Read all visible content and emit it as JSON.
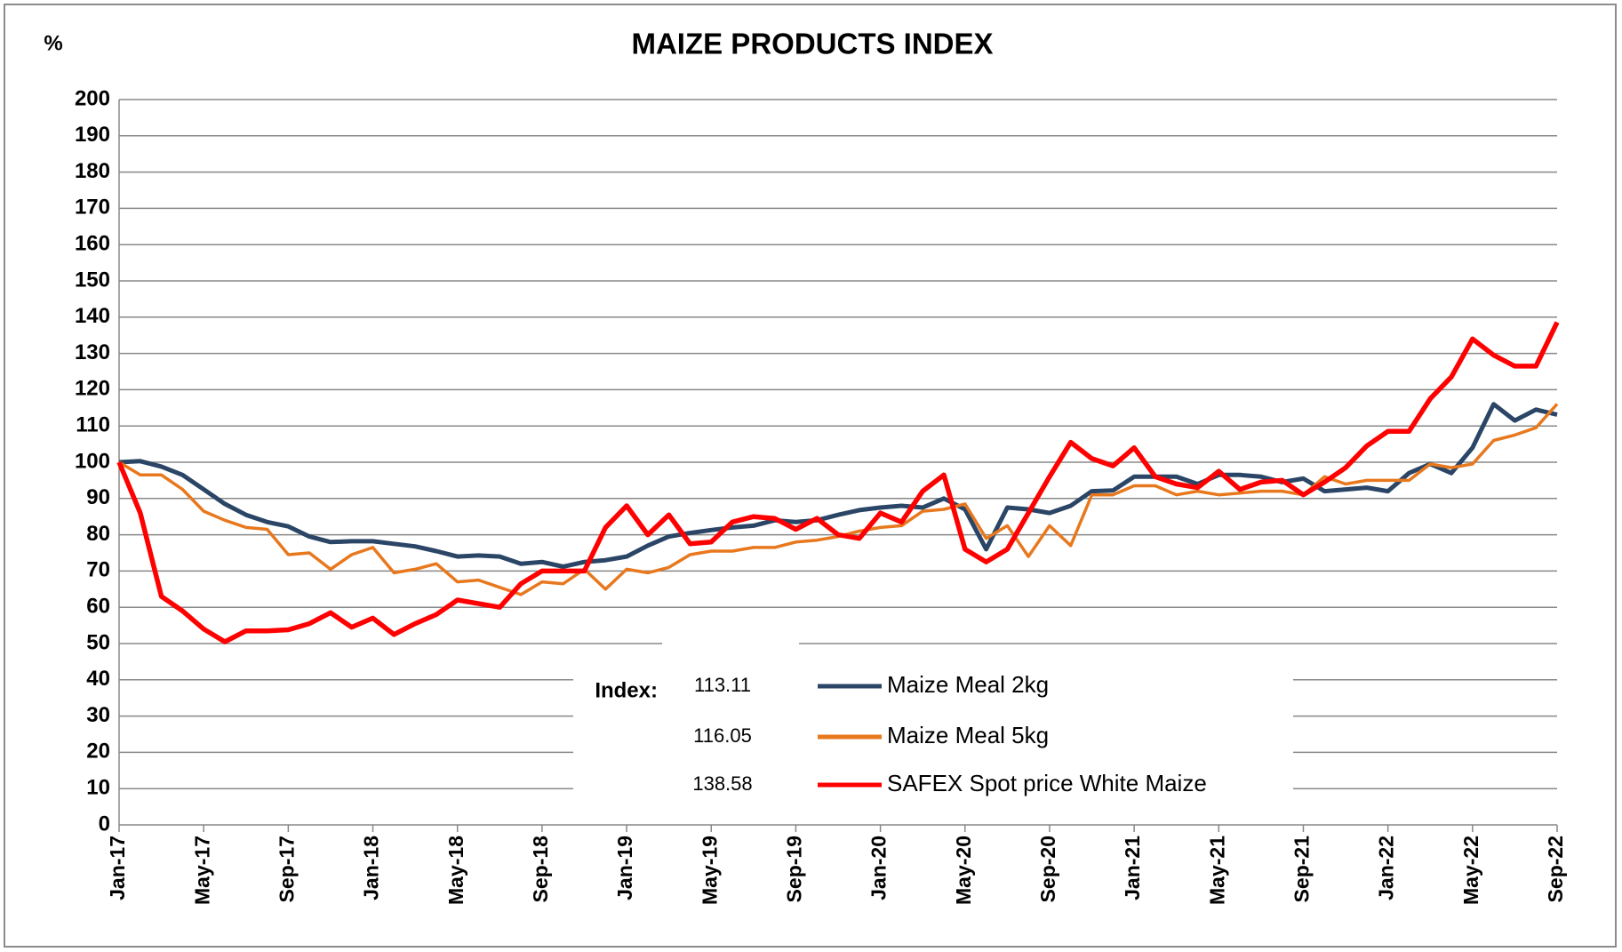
{
  "chart_data": {
    "type": "line",
    "title": "MAIZE PRODUCTS INDEX",
    "ylabel": "%",
    "index_label": "Index:",
    "categories": [
      "Jan-17",
      null,
      null,
      null,
      "May-17",
      null,
      null,
      null,
      "Sep-17",
      null,
      null,
      null,
      "Jan-18",
      null,
      null,
      null,
      "May-18",
      null,
      null,
      null,
      "Sep-18",
      null,
      null,
      null,
      "Jan-19",
      null,
      null,
      null,
      "May-19",
      null,
      null,
      null,
      "Sep-19",
      null,
      null,
      null,
      "Jan-20",
      null,
      null,
      null,
      "May-20",
      null,
      null,
      null,
      "Sep-20",
      null,
      null,
      null,
      "Jan-21",
      null,
      null,
      null,
      "May-21",
      null,
      null,
      null,
      "Sep-21",
      null,
      null,
      null,
      "Jan-22",
      null,
      null,
      null,
      "May-22",
      null,
      null,
      null,
      "Sep-22"
    ],
    "series": [
      {
        "name": "Maize Meal 2kg",
        "color": "#2b4566",
        "values": [
          100,
          100.3,
          98.8,
          96.5,
          92.5,
          88.5,
          85.5,
          83.5,
          82.3,
          79.5,
          78,
          78.2,
          78.2,
          77.5,
          76.8,
          75.5,
          74,
          74.3,
          74,
          72,
          72.5,
          71.2,
          72.5,
          73,
          74,
          77,
          79.5,
          80.5,
          81.3,
          82,
          82.5,
          84,
          83.5,
          84,
          85.5,
          86.8,
          87.5,
          88,
          87.5,
          90,
          87,
          76,
          87.5,
          87,
          86,
          88,
          92,
          92.2,
          96,
          96,
          96,
          94,
          96.5,
          96.5,
          96,
          94.5,
          95.5,
          92,
          92.5,
          93,
          92,
          97,
          99.5,
          97,
          104,
          116,
          111.5,
          114.5,
          113.11
        ]
      },
      {
        "name": "Maize Meal 5kg",
        "color": "#e8781e",
        "values": [
          100,
          96.5,
          96.5,
          92.5,
          86.5,
          84,
          82,
          81.5,
          74.5,
          75,
          70.5,
          74.5,
          76.5,
          69.5,
          70.5,
          72,
          67,
          67.5,
          65.5,
          63.5,
          67,
          66.5,
          70.5,
          65,
          70.5,
          69.5,
          71,
          74.5,
          75.5,
          75.5,
          76.5,
          76.5,
          78,
          78.5,
          79.5,
          81,
          82,
          82.5,
          86.5,
          87,
          88.5,
          79,
          82.5,
          74,
          82.5,
          77,
          91,
          91,
          93.5,
          93.5,
          91,
          92,
          91,
          91.5,
          92,
          92,
          91,
          96,
          94,
          95,
          95,
          95,
          99.5,
          98.5,
          99.5,
          106,
          107.5,
          109.5,
          116.05
        ]
      },
      {
        "name": "SAFEX Spot price White Maize",
        "color": "#ff0000",
        "values": [
          100,
          86,
          63,
          59,
          54,
          50.5,
          53.5,
          53.5,
          53.8,
          55.5,
          58.5,
          54.5,
          57,
          52.5,
          55.5,
          58,
          62,
          61,
          60,
          66.5,
          70,
          70,
          70,
          82,
          88,
          80,
          85.5,
          77.5,
          78,
          83.5,
          85,
          84.5,
          81.5,
          84.5,
          80,
          79,
          86,
          83.5,
          92,
          96.5,
          76,
          72.5,
          76,
          86,
          96,
          105.5,
          101,
          99,
          104,
          96,
          94,
          93,
          97.5,
          92.5,
          94.5,
          95,
          91,
          94.5,
          98.5,
          104.5,
          108.5,
          108.5,
          117.5,
          123.5,
          134,
          129.5,
          126.5,
          126.5,
          138.58
        ]
      }
    ],
    "ylim": [
      0,
      200
    ],
    "yticks": [
      0,
      10,
      20,
      30,
      40,
      50,
      60,
      70,
      80,
      90,
      100,
      110,
      120,
      130,
      140,
      150,
      160,
      170,
      180,
      190,
      200
    ],
    "grid": true
  }
}
